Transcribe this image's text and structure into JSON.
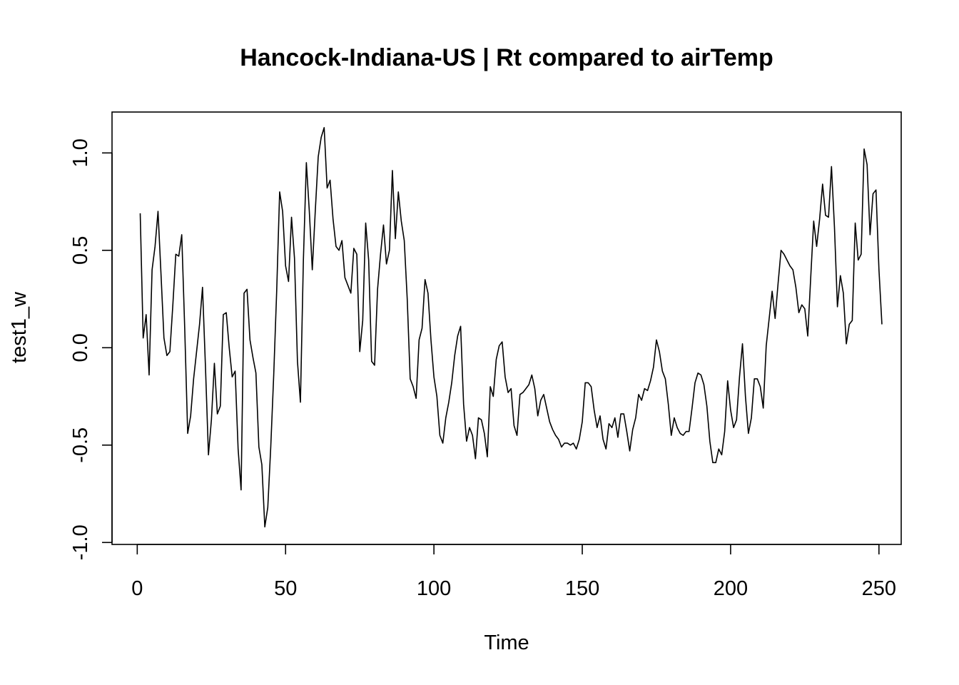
{
  "chart_data": {
    "type": "line",
    "title": "Hancock-Indiana-US | Rt compared to airTemp",
    "xlabel": "Time",
    "ylabel": "test1_w",
    "xlim": [
      -8.5,
      257.5
    ],
    "ylim": [
      -1.01,
      1.21
    ],
    "x_ticks": [
      0,
      50,
      100,
      150,
      200,
      250
    ],
    "x_tick_labels": [
      "0",
      "50",
      "100",
      "150",
      "200",
      "250"
    ],
    "y_ticks": [
      -1.0,
      -0.5,
      0.0,
      0.5,
      1.0
    ],
    "y_tick_labels": [
      "-1.0",
      "-0.5",
      "0.0",
      "0.5",
      "1.0"
    ],
    "grid": false,
    "series": [
      {
        "x_start": 1,
        "x_step": 1,
        "values": [
          0.69,
          0.05,
          0.17,
          -0.14,
          0.4,
          0.52,
          0.7,
          0.38,
          0.05,
          -0.04,
          -0.02,
          0.22,
          0.48,
          0.47,
          0.58,
          0.1,
          -0.44,
          -0.35,
          -0.16,
          -0.02,
          0.12,
          0.31,
          -0.1,
          -0.55,
          -0.37,
          -0.08,
          -0.34,
          -0.3,
          0.17,
          0.18,
          0.0,
          -0.15,
          -0.12,
          -0.52,
          -0.73,
          0.28,
          0.3,
          0.04,
          -0.05,
          -0.13,
          -0.51,
          -0.6,
          -0.92,
          -0.82,
          -0.51,
          -0.14,
          0.29,
          0.8,
          0.7,
          0.42,
          0.34,
          0.67,
          0.46,
          -0.07,
          -0.28,
          0.45,
          0.95,
          0.7,
          0.4,
          0.7,
          0.98,
          1.08,
          1.13,
          0.82,
          0.86,
          0.66,
          0.52,
          0.5,
          0.55,
          0.36,
          0.32,
          0.28,
          0.51,
          0.48,
          -0.02,
          0.14,
          0.64,
          0.45,
          -0.07,
          -0.09,
          0.3,
          0.48,
          0.63,
          0.43,
          0.5,
          0.91,
          0.56,
          0.8,
          0.65,
          0.55,
          0.25,
          -0.16,
          -0.2,
          -0.26,
          0.04,
          0.1,
          0.35,
          0.28,
          0.04,
          -0.15,
          -0.25,
          -0.45,
          -0.49,
          -0.36,
          -0.28,
          -0.18,
          -0.04,
          0.06,
          0.11,
          -0.29,
          -0.48,
          -0.41,
          -0.45,
          -0.57,
          -0.36,
          -0.37,
          -0.44,
          -0.56,
          -0.2,
          -0.25,
          -0.06,
          0.01,
          0.03,
          -0.15,
          -0.23,
          -0.21,
          -0.4,
          -0.45,
          -0.24,
          -0.23,
          -0.21,
          -0.19,
          -0.14,
          -0.21,
          -0.35,
          -0.27,
          -0.24,
          -0.31,
          -0.38,
          -0.42,
          -0.45,
          -0.47,
          -0.51,
          -0.49,
          -0.49,
          -0.5,
          -0.49,
          -0.52,
          -0.47,
          -0.38,
          -0.18,
          -0.18,
          -0.2,
          -0.32,
          -0.41,
          -0.35,
          -0.47,
          -0.52,
          -0.39,
          -0.41,
          -0.36,
          -0.46,
          -0.34,
          -0.34,
          -0.43,
          -0.53,
          -0.42,
          -0.36,
          -0.24,
          -0.27,
          -0.21,
          -0.22,
          -0.17,
          -0.1,
          0.04,
          -0.02,
          -0.12,
          -0.16,
          -0.29,
          -0.45,
          -0.36,
          -0.41,
          -0.44,
          -0.45,
          -0.43,
          -0.43,
          -0.31,
          -0.18,
          -0.13,
          -0.14,
          -0.19,
          -0.3,
          -0.48,
          -0.59,
          -0.59,
          -0.52,
          -0.55,
          -0.43,
          -0.17,
          -0.32,
          -0.41,
          -0.37,
          -0.15,
          0.02,
          -0.25,
          -0.44,
          -0.36,
          -0.16,
          -0.16,
          -0.2,
          -0.31,
          0.01,
          0.15,
          0.29,
          0.15,
          0.33,
          0.5,
          0.48,
          0.45,
          0.42,
          0.4,
          0.31,
          0.18,
          0.22,
          0.2,
          0.06,
          0.36,
          0.65,
          0.52,
          0.66,
          0.84,
          0.68,
          0.67,
          0.93,
          0.62,
          0.21,
          0.37,
          0.28,
          0.02,
          0.12,
          0.14,
          0.64,
          0.45,
          0.48,
          1.02,
          0.94,
          0.58,
          0.79,
          0.81,
          0.4,
          0.12
        ]
      }
    ]
  }
}
